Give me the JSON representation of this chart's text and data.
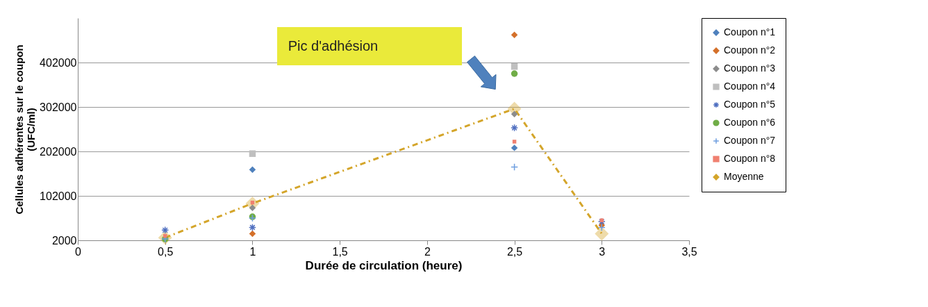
{
  "chart_data": {
    "type": "scatter",
    "xlabel": "Durée de circulation  (heure)",
    "ylabel": "Cellules adhérentes sur le coupon  (UFC/ml)",
    "xlim": [
      0,
      3.5
    ],
    "xticks": [
      0,
      {
        "value": 0.5,
        "label": "0,5"
      },
      1,
      {
        "value": 1.5,
        "label": "1,5"
      },
      2,
      {
        "value": 2.5,
        "label": "2,5"
      },
      3,
      {
        "value": 3.5,
        "label": "3,5"
      }
    ],
    "ylim": [
      2000,
      502000
    ],
    "yticks": [
      2000,
      102000,
      202000,
      302000,
      402000
    ],
    "grid": "y",
    "legend": "right",
    "x": [
      0.5,
      1,
      2.5,
      3
    ],
    "series": [
      {
        "name": "Coupon n°1",
        "color": "#4f81bd",
        "marker": "diamond",
        "values": [
          null,
          161000,
          210000,
          null
        ]
      },
      {
        "name": "Coupon n°2",
        "color": "#d4702a",
        "marker": "diamond",
        "values": [
          null,
          17000,
          464000,
          36000
        ]
      },
      {
        "name": "Coupon n°3",
        "color": "#8c8c8c",
        "marker": "diamond",
        "values": [
          null,
          75000,
          286000,
          null
        ]
      },
      {
        "name": "Coupon n°4",
        "color": "#bfbfbf",
        "marker": "square",
        "values": [
          null,
          197000,
          393000,
          null
        ]
      },
      {
        "name": "Coupon n°5",
        "color": "#4f6fc0",
        "marker": "cross",
        "values": [
          25000,
          31000,
          255000,
          44000
        ]
      },
      {
        "name": "Coupon n°6",
        "color": "#70ad47",
        "marker": "circle",
        "values": [
          5000,
          55000,
          377000,
          null
        ]
      },
      {
        "name": "Coupon n°7",
        "color": "#6f9fe0",
        "marker": "cross",
        "values": [
          5000,
          52000,
          167000,
          31000
        ]
      },
      {
        "name": "Coupon n°8",
        "color": "#f08070",
        "marker": "square",
        "values": [
          12000,
          87000,
          224000,
          47000
        ]
      },
      {
        "name": "Moyenne",
        "type": "line",
        "color": "#d4a52a",
        "marker": "diamond",
        "line_style": "dashed",
        "values": [
          8000,
          85000,
          298000,
          17000
        ]
      }
    ],
    "annotations": [
      "Pic d'adhésion"
    ]
  }
}
